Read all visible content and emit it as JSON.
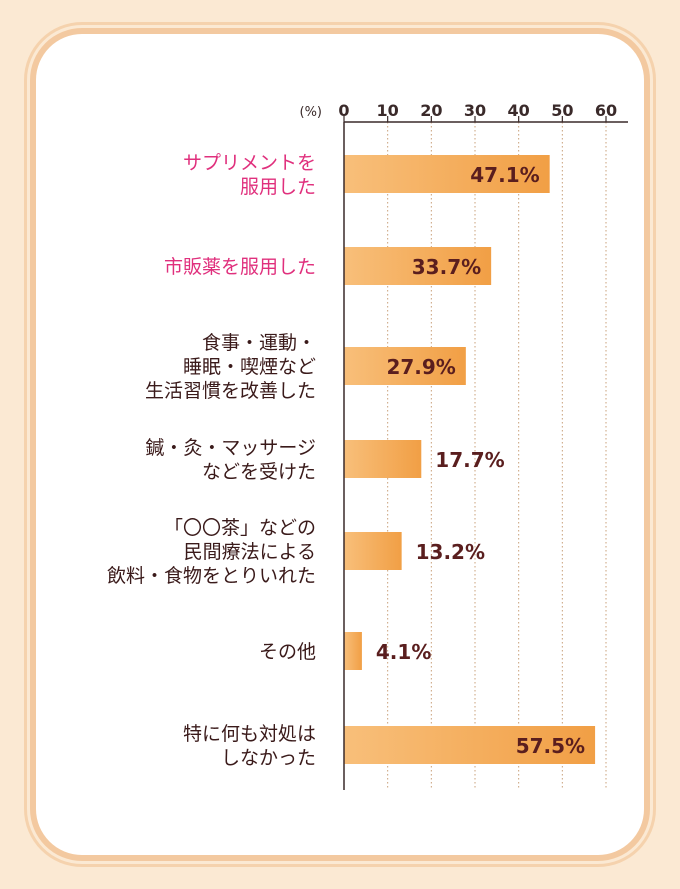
{
  "chart_data": {
    "type": "bar",
    "orientation": "horizontal",
    "unit_label": "(%)",
    "xlim": [
      0,
      60
    ],
    "ticks": [
      0,
      10,
      20,
      30,
      40,
      50,
      60
    ],
    "grid": true,
    "categories": [
      [
        "サプリメントを",
        "服用した"
      ],
      [
        "市販薬を服用した"
      ],
      [
        "食事・運動・",
        "睡眠・喫煙など",
        "生活習慣を改善した"
      ],
      [
        "鍼・灸・マッサージ",
        "などを受けた"
      ],
      [
        "「〇〇茶」などの",
        "民間療法による",
        "飲料・食物をとりいれた"
      ],
      [
        "その他"
      ],
      [
        "特に何も対処は",
        "しなかった"
      ]
    ],
    "values": [
      47.1,
      33.7,
      27.9,
      17.7,
      13.2,
      4.1,
      57.5
    ],
    "value_labels": [
      "47.1%",
      "33.7%",
      "27.9%",
      "17.7%",
      "13.2%",
      "4.1%",
      "57.5%"
    ],
    "highlight": [
      true,
      true,
      false,
      false,
      false,
      false,
      false
    ]
  },
  "colors": {
    "bar": "#f8bf7a",
    "bar_end": "#f19f45",
    "highlight_text": "#e0307d",
    "label_text": "#3a1a1a",
    "value_text": "#5a1e1e",
    "axis": "#3a2a2a",
    "grid": "#c9a07a",
    "background": "#fbe9d3",
    "border": "#f3c9a0"
  }
}
